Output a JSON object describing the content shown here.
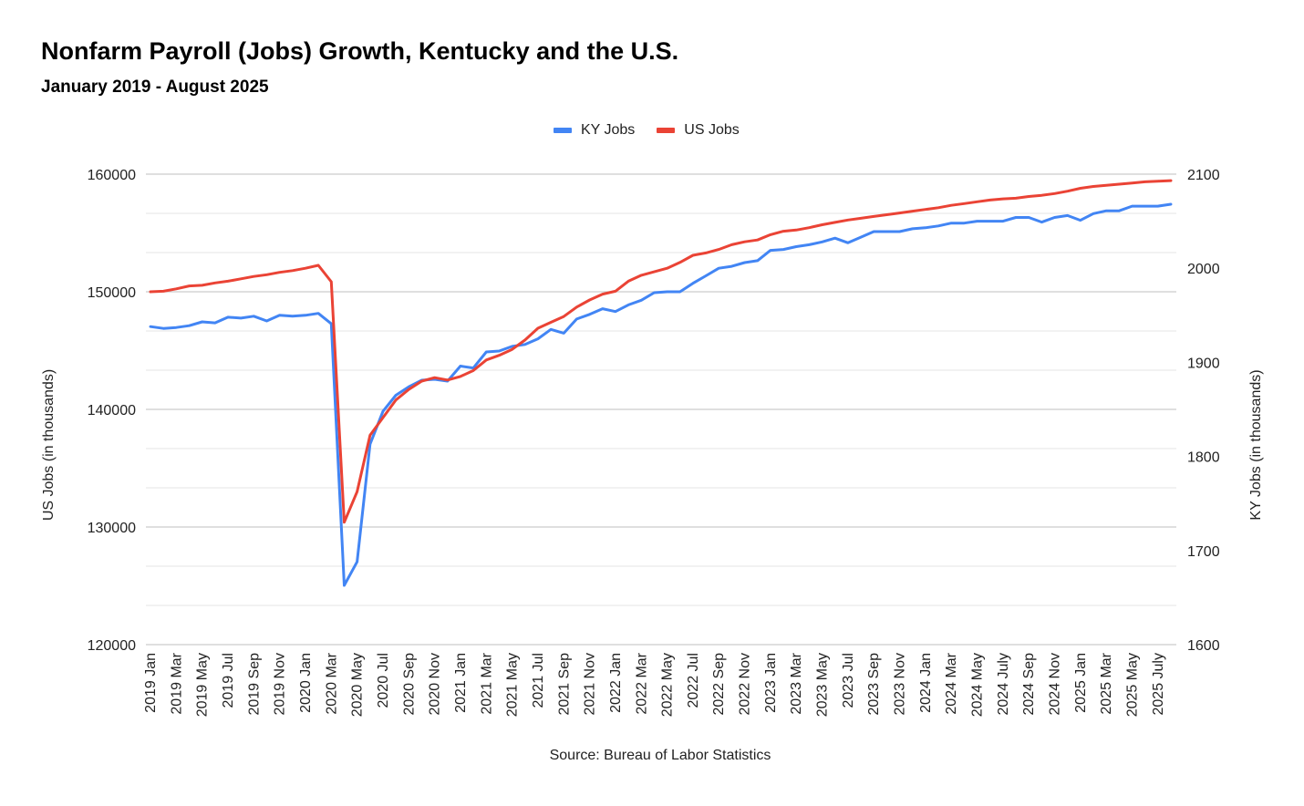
{
  "header": {
    "title": "Nonfarm Payroll (Jobs) Growth, Kentucky and the U.S.",
    "subtitle": "January 2019 - August 2025"
  },
  "footer": {
    "source": "Source: Bureau of Labor Statistics"
  },
  "colors": {
    "ky": "#4285f4",
    "us": "#ea4335",
    "grid_major": "#cccccc",
    "grid_minor": "#e6e6e6"
  },
  "chart_data": {
    "type": "line",
    "title": "Nonfarm Payroll (Jobs) Growth, Kentucky and the U.S.",
    "subtitle": "January 2019 - August 2025",
    "xlabel": "",
    "ylabel_left": "US Jobs (in thousands)",
    "ylabel_right": "KY Jobs (in thousands)",
    "ylim_left": [
      120000,
      160000
    ],
    "ylim_right": [
      1600,
      2100
    ],
    "yticks_left": [
      "120000",
      "130000",
      "140000",
      "150000",
      "160000"
    ],
    "yticks_right": [
      "1600",
      "1700",
      "1800",
      "1900",
      "2000",
      "2100"
    ],
    "grid": true,
    "legend_position": "top-center",
    "x_tick_labels": [
      "2019 Jan",
      "2019 Mar",
      "2019 May",
      "2019 Jul",
      "2019 Sep",
      "2019 Nov",
      "2020 Jan",
      "2020 Mar",
      "2020 May",
      "2020 Jul",
      "2020 Sep",
      "2020 Nov",
      "2021 Jan",
      "2021 Mar",
      "2021 May",
      "2021 Jul",
      "2021 Sep",
      "2021 Nov",
      "2022 Jan",
      "2022 Mar",
      "2022 May",
      "2022 Jul",
      "2022 Sep",
      "2022 Nov",
      "2023 Jan",
      "2023 Mar",
      "2023 May",
      "2023 Jul",
      "2023 Sep",
      "2023 Nov",
      "2024 Jan",
      "2024 Mar",
      "2024 May",
      "2024 July",
      "2024 Sep",
      "2024 Nov",
      "2025 Jan",
      "2025 Mar",
      "2025 May",
      "2025 July"
    ],
    "x_tick_every_n_months": 2,
    "x_count": 80,
    "series": [
      {
        "name": "KY Jobs",
        "axis": "right",
        "color": "#4285f4",
        "values": [
          1938,
          1936,
          1937,
          1939,
          1943,
          1942,
          1948,
          1947,
          1949,
          1944,
          1950,
          1949,
          1950,
          1952,
          1941,
          1663,
          1688,
          1813,
          1848,
          1865,
          1874,
          1881,
          1882,
          1880,
          1896,
          1894,
          1911,
          1912,
          1917,
          1919,
          1925,
          1935,
          1931,
          1946,
          1951,
          1957,
          1954,
          1961,
          1966,
          1974,
          1975,
          1975,
          1984,
          1992,
          2000,
          2002,
          2006,
          2008,
          2019,
          2020,
          2023,
          2025,
          2028,
          2032,
          2027,
          2033,
          2039,
          2039,
          2039,
          2042,
          2043,
          2045,
          2048,
          2048,
          2050,
          2050,
          2050,
          2054,
          2054,
          2049,
          2054,
          2056,
          2051,
          2058,
          2061,
          2061,
          2066,
          2066,
          2066,
          2068
        ]
      },
      {
        "name": "US Jobs",
        "axis": "left",
        "color": "#ea4335",
        "values": [
          150000,
          150050,
          150250,
          150500,
          150550,
          150750,
          150900,
          151100,
          151300,
          151450,
          151650,
          151800,
          152000,
          152250,
          150850,
          130400,
          133000,
          137800,
          139300,
          140800,
          141700,
          142400,
          142700,
          142500,
          142800,
          143300,
          144200,
          144600,
          145100,
          145900,
          146900,
          147400,
          147900,
          148700,
          149300,
          149800,
          150050,
          150900,
          151400,
          151700,
          152000,
          152500,
          153100,
          153300,
          153600,
          154000,
          154250,
          154400,
          154850,
          155150,
          155250,
          155450,
          155700,
          155900,
          156100,
          156250,
          156400,
          156550,
          156700,
          156850,
          157000,
          157150,
          157350,
          157500,
          157650,
          157800,
          157900,
          157950,
          158100,
          158200,
          158350,
          158550,
          158800,
          158950,
          159050,
          159150,
          159250,
          159350,
          159400,
          159450
        ]
      }
    ]
  }
}
